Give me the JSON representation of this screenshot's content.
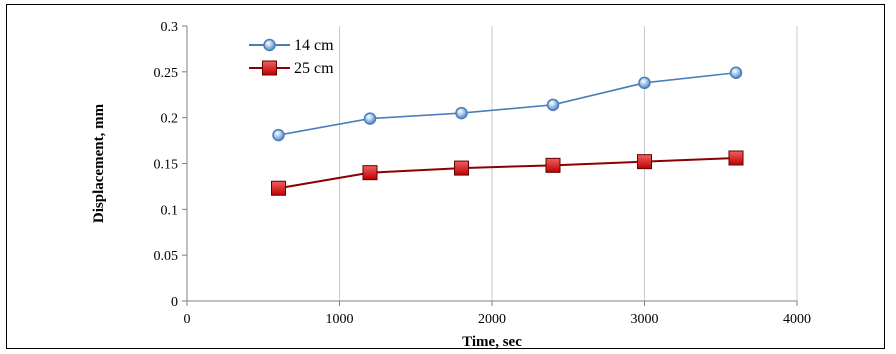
{
  "chart_data": {
    "type": "line",
    "title": "",
    "xlabel": "Time, sec",
    "ylabel": "Displacement, mm",
    "xlim": [
      0,
      4000
    ],
    "ylim": [
      0,
      0.3
    ],
    "xticks": [
      0,
      1000,
      2000,
      3000,
      4000
    ],
    "yticks": [
      0,
      0.05,
      0.1,
      0.15,
      0.2,
      0.25,
      0.3
    ],
    "xtick_labels": [
      "0",
      "1000",
      "2000",
      "3000",
      "4000"
    ],
    "ytick_labels": [
      "0",
      "0.05",
      "0.1",
      "0.15",
      "0.2",
      "0.25",
      "0.3"
    ],
    "grid": "vertical",
    "legend_position": "top-left",
    "series": [
      {
        "name": "14 cm",
        "color": "#4a7ebb",
        "marker": "circle",
        "x": [
          600,
          1200,
          1800,
          2400,
          3000,
          3600
        ],
        "y": [
          0.181,
          0.199,
          0.205,
          0.214,
          0.238,
          0.249
        ]
      },
      {
        "name": "25 cm",
        "color": "#8b0000",
        "marker": "square",
        "x": [
          600,
          1200,
          1800,
          2400,
          3000,
          3600
        ],
        "y": [
          0.123,
          0.14,
          0.145,
          0.148,
          0.152,
          0.156
        ]
      }
    ]
  }
}
